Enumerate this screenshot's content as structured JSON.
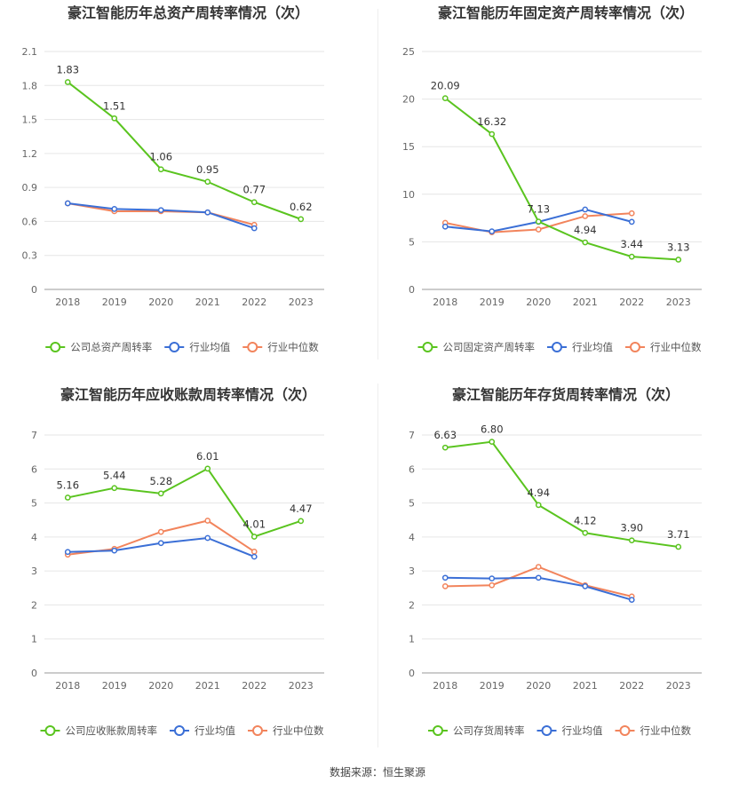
{
  "source_text": "数据来源：恒生聚源",
  "legend_common": {
    "avg": "行业均值",
    "median": "行业中位数"
  },
  "colors": {
    "company": "#5ac41f",
    "avg": "#3b6fd6",
    "median": "#f2845c",
    "grid": "#e6e6e6",
    "axis": "#999999",
    "label": "#333333",
    "tick": "#666666"
  },
  "chart_data": [
    {
      "type": "line",
      "title": "豪江智能历年总资产周转率情况（次）",
      "categories": [
        "2018",
        "2019",
        "2020",
        "2021",
        "2022",
        "2023"
      ],
      "ylim": [
        0,
        2.1
      ],
      "yticks": [
        "0",
        "0.3",
        "0.6",
        "0.9",
        "1.2",
        "1.5",
        "1.8",
        "2.1"
      ],
      "series": [
        {
          "name": "公司总资产周转率",
          "key": "company",
          "values": [
            1.83,
            1.51,
            1.06,
            0.95,
            0.77,
            0.62
          ],
          "labels": [
            "1.83",
            "1.51",
            "1.06",
            "0.95",
            "0.77",
            "0.62"
          ]
        },
        {
          "name": "行业均值",
          "key": "avg",
          "values": [
            0.76,
            0.71,
            0.7,
            0.68,
            0.54,
            null
          ]
        },
        {
          "name": "行业中位数",
          "key": "median",
          "values": [
            0.76,
            0.69,
            0.69,
            0.68,
            0.57,
            null
          ]
        }
      ]
    },
    {
      "type": "line",
      "title": "豪江智能历年固定资产周转率情况（次）",
      "categories": [
        "2018",
        "2019",
        "2020",
        "2021",
        "2022",
        "2023"
      ],
      "ylim": [
        0,
        25
      ],
      "yticks": [
        "0",
        "5",
        "10",
        "15",
        "20",
        "25"
      ],
      "series": [
        {
          "name": "公司固定资产周转率",
          "key": "company",
          "values": [
            20.09,
            16.32,
            7.13,
            4.94,
            3.44,
            3.13
          ],
          "labels": [
            "20.09",
            "16.32",
            "7.13",
            "4.94",
            "3.44",
            "3.13"
          ]
        },
        {
          "name": "行业均值",
          "key": "avg",
          "values": [
            6.6,
            6.1,
            7.1,
            8.4,
            7.1,
            null
          ]
        },
        {
          "name": "行业中位数",
          "key": "median",
          "values": [
            7.0,
            6.0,
            6.3,
            7.7,
            8.0,
            null
          ]
        }
      ]
    },
    {
      "type": "line",
      "title": "豪江智能历年应收账款周转率情况（次）",
      "categories": [
        "2018",
        "2019",
        "2020",
        "2021",
        "2022",
        "2023"
      ],
      "ylim": [
        0,
        7
      ],
      "yticks": [
        "0",
        "1",
        "2",
        "3",
        "4",
        "5",
        "6",
        "7"
      ],
      "series": [
        {
          "name": "公司应收账款周转率",
          "key": "company",
          "values": [
            5.16,
            5.44,
            5.28,
            6.01,
            4.01,
            4.47
          ],
          "labels": [
            "5.16",
            "5.44",
            "5.28",
            "6.01",
            "4.01",
            "4.47"
          ]
        },
        {
          "name": "行业均值",
          "key": "avg",
          "values": [
            3.56,
            3.6,
            3.82,
            3.97,
            3.42,
            null
          ]
        },
        {
          "name": "行业中位数",
          "key": "median",
          "values": [
            3.48,
            3.65,
            4.15,
            4.48,
            3.57,
            null
          ]
        }
      ]
    },
    {
      "type": "line",
      "title": "豪江智能历年存货周转率情况（次）",
      "categories": [
        "2018",
        "2019",
        "2020",
        "2021",
        "2022",
        "2023"
      ],
      "ylim": [
        0,
        7
      ],
      "yticks": [
        "0",
        "1",
        "2",
        "3",
        "4",
        "5",
        "6",
        "7"
      ],
      "series": [
        {
          "name": "公司存货周转率",
          "key": "company",
          "values": [
            6.63,
            6.8,
            4.94,
            4.12,
            3.9,
            3.71
          ],
          "labels": [
            "6.63",
            "6.80",
            "4.94",
            "4.12",
            "3.90",
            "3.71"
          ]
        },
        {
          "name": "行业均值",
          "key": "avg",
          "values": [
            2.8,
            2.78,
            2.8,
            2.55,
            2.15,
            null
          ]
        },
        {
          "name": "行业中位数",
          "key": "median",
          "values": [
            2.55,
            2.58,
            3.12,
            2.58,
            2.25,
            null
          ]
        }
      ]
    }
  ]
}
